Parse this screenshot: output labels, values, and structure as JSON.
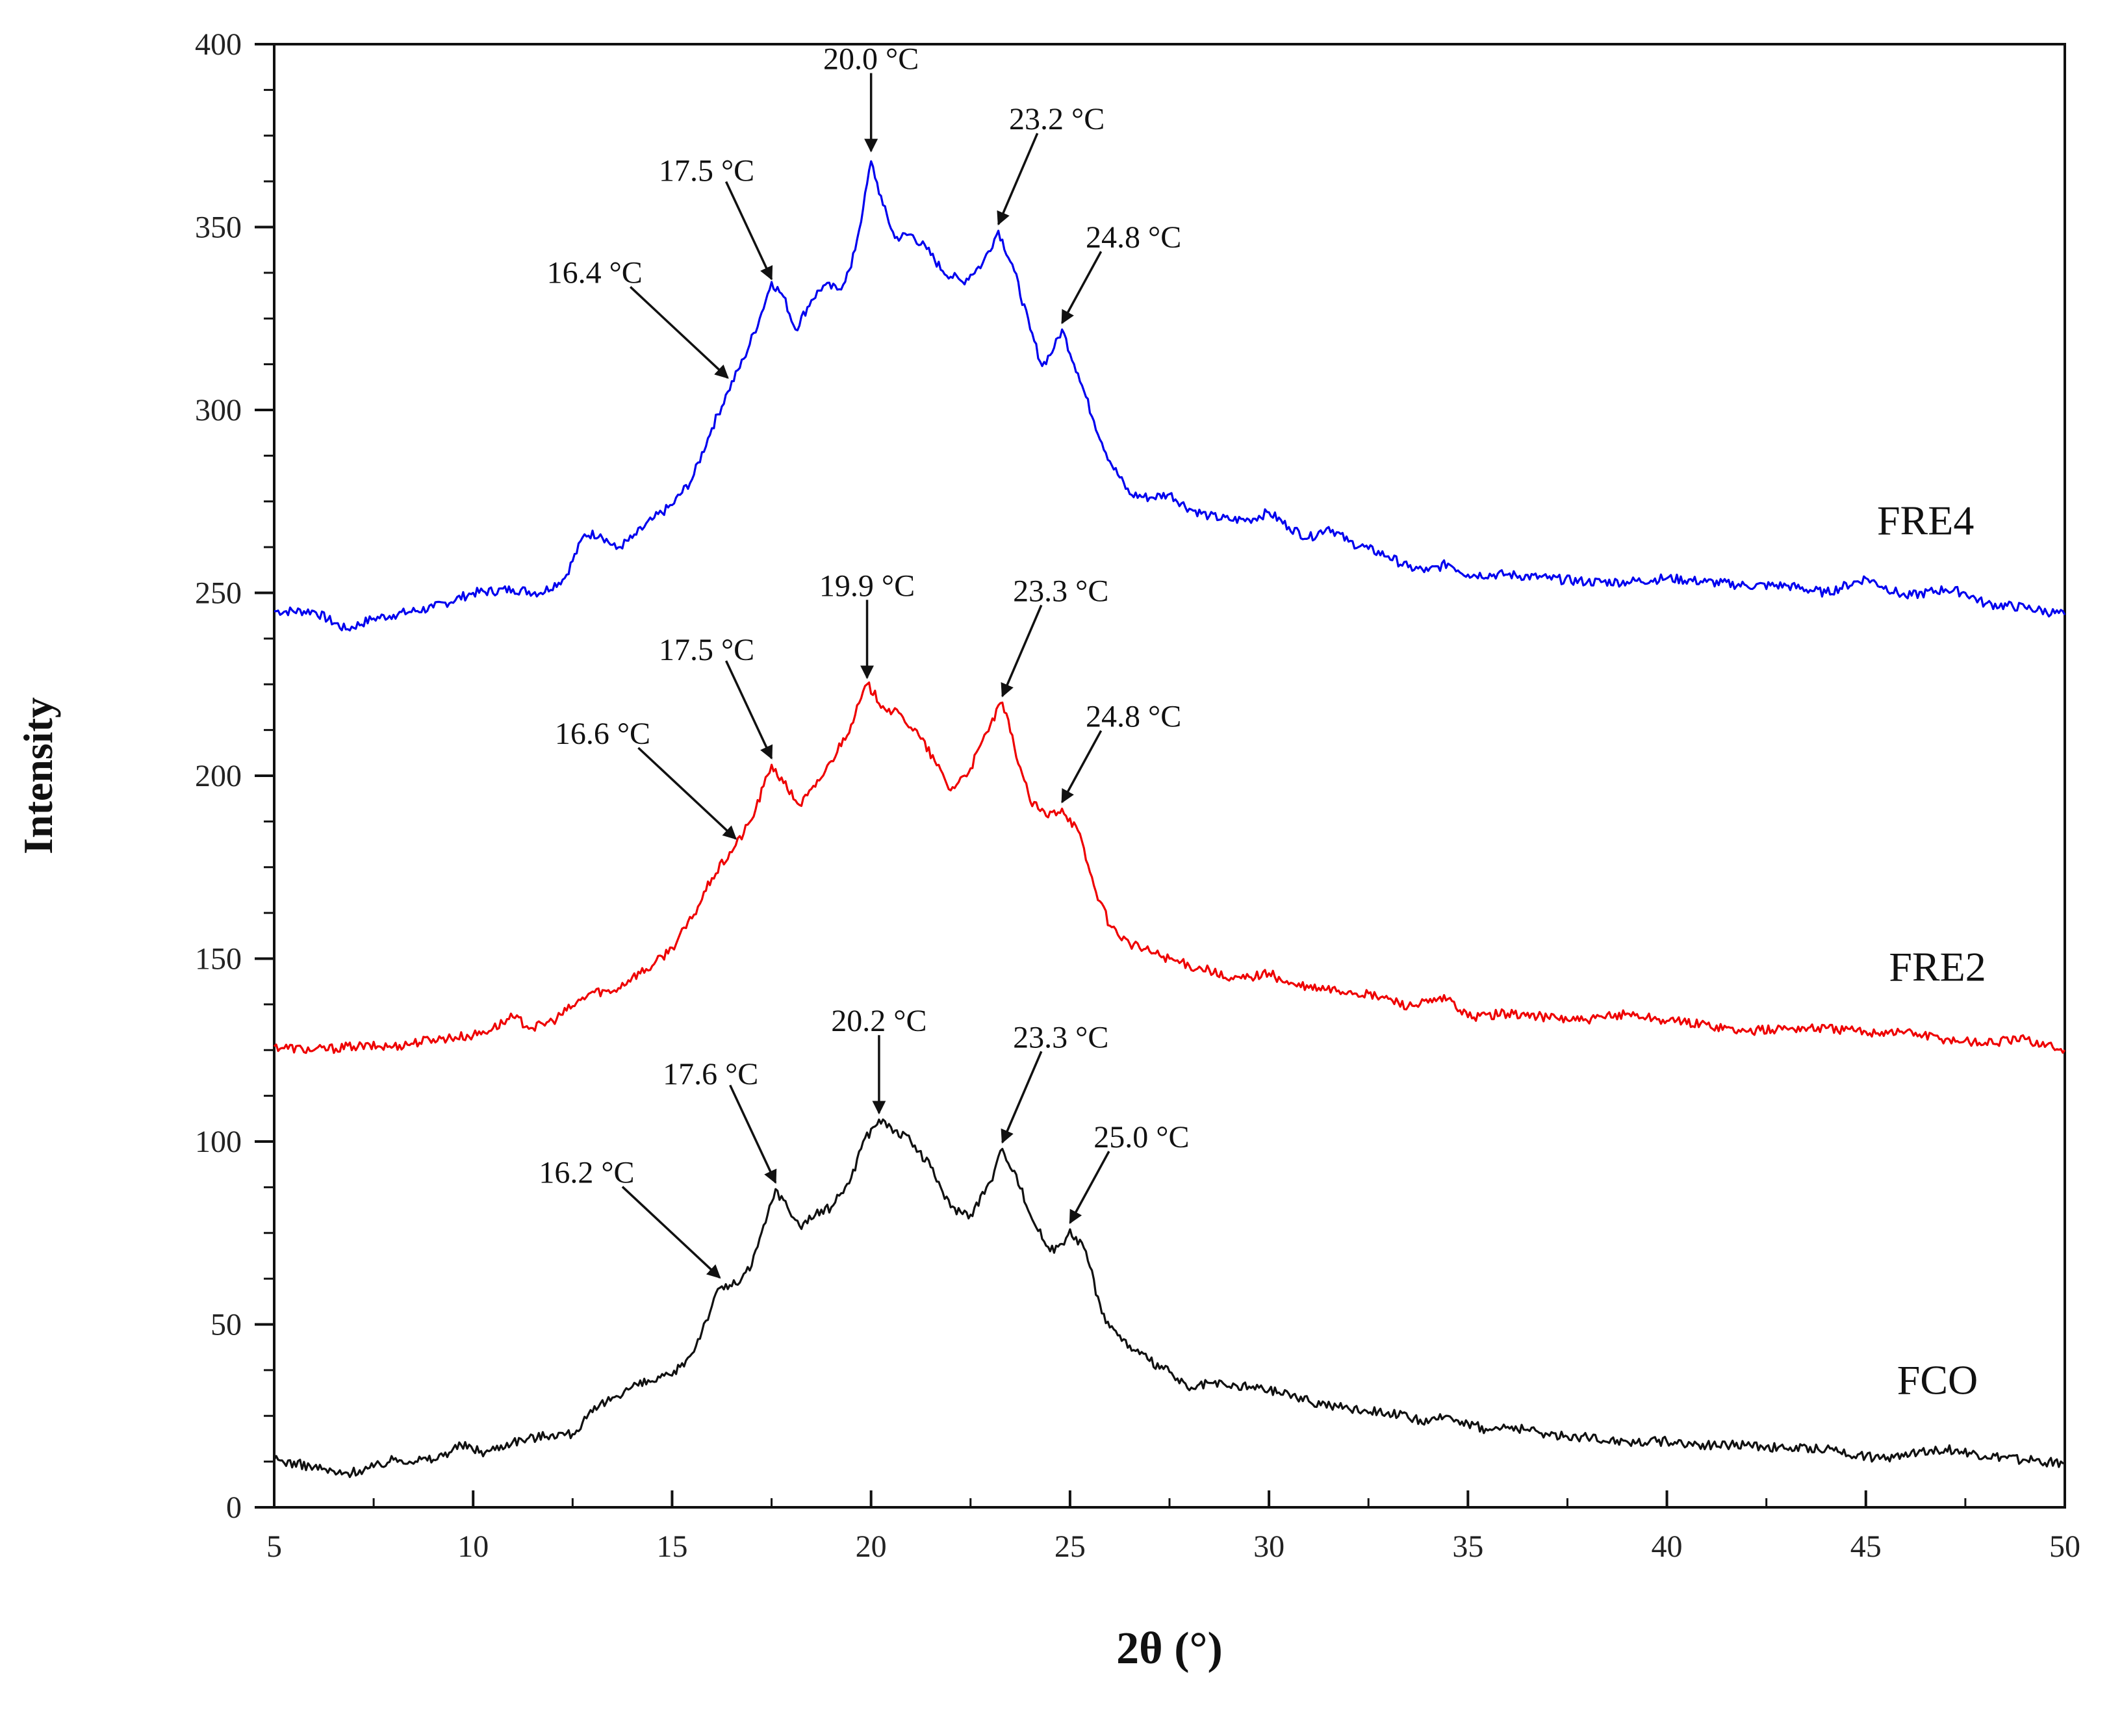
{
  "chart_data": {
    "type": "line",
    "title": "",
    "xlabel": "2θ (°)",
    "ylabel": "Intensity",
    "xlim": [
      5,
      50
    ],
    "ylim": [
      0,
      400
    ],
    "x_ticks": [
      5,
      10,
      15,
      20,
      25,
      30,
      35,
      40,
      45,
      50
    ],
    "y_ticks": [
      0,
      50,
      100,
      150,
      200,
      250,
      300,
      350,
      400
    ],
    "grid": false,
    "legend": "none",
    "series": [
      {
        "name": "FRE4",
        "color": "#0000ee",
        "points": [
          [
            5,
            245
          ],
          [
            6,
            245
          ],
          [
            6.8,
            240
          ],
          [
            7.5,
            243
          ],
          [
            8,
            244
          ],
          [
            9,
            246
          ],
          [
            10,
            250
          ],
          [
            11,
            251
          ],
          [
            11.7,
            250
          ],
          [
            12.3,
            254
          ],
          [
            12.8,
            266
          ],
          [
            13.2,
            266
          ],
          [
            13.6,
            262
          ],
          [
            14,
            265
          ],
          [
            14.5,
            270
          ],
          [
            15,
            274
          ],
          [
            15.5,
            281
          ],
          [
            16,
            295
          ],
          [
            16.4,
            305
          ],
          [
            16.8,
            314
          ],
          [
            17.2,
            325
          ],
          [
            17.5,
            335
          ],
          [
            17.8,
            331
          ],
          [
            18.1,
            322
          ],
          [
            18.5,
            330
          ],
          [
            18.8,
            334
          ],
          [
            19.2,
            333
          ],
          [
            19.5,
            339
          ],
          [
            19.8,
            355
          ],
          [
            20.0,
            368
          ],
          [
            20.3,
            356
          ],
          [
            20.6,
            347
          ],
          [
            21,
            348
          ],
          [
            21.4,
            344
          ],
          [
            21.8,
            338
          ],
          [
            22.3,
            335
          ],
          [
            22.8,
            340
          ],
          [
            23.2,
            349
          ],
          [
            23.6,
            338
          ],
          [
            24,
            322
          ],
          [
            24.3,
            312
          ],
          [
            24.6,
            317
          ],
          [
            24.8,
            322
          ],
          [
            25.2,
            310
          ],
          [
            25.6,
            297
          ],
          [
            26,
            286
          ],
          [
            26.5,
            277
          ],
          [
            27,
            276
          ],
          [
            27.5,
            277
          ],
          [
            28,
            273
          ],
          [
            28.5,
            271
          ],
          [
            29,
            270
          ],
          [
            29.5,
            270
          ],
          [
            30,
            272
          ],
          [
            30.5,
            268
          ],
          [
            31,
            265
          ],
          [
            31.5,
            268
          ],
          [
            32,
            264
          ],
          [
            32.5,
            262
          ],
          [
            33,
            260
          ],
          [
            33.5,
            257
          ],
          [
            34,
            256
          ],
          [
            34.5,
            258
          ],
          [
            35,
            255
          ],
          [
            36,
            255
          ],
          [
            37,
            254
          ],
          [
            38,
            253
          ],
          [
            39,
            253
          ],
          [
            40,
            254
          ],
          [
            41,
            253
          ],
          [
            42,
            252
          ],
          [
            43,
            252
          ],
          [
            44,
            250
          ],
          [
            45,
            254
          ],
          [
            46,
            249
          ],
          [
            47,
            251
          ],
          [
            47.5,
            250
          ],
          [
            48,
            247
          ],
          [
            49,
            246
          ],
          [
            50,
            244
          ]
        ]
      },
      {
        "name": "FRE2",
        "color": "#ee0000",
        "points": [
          [
            5,
            126
          ],
          [
            6,
            125
          ],
          [
            7,
            126
          ],
          [
            8,
            126
          ],
          [
            9,
            128
          ],
          [
            10,
            129
          ],
          [
            10.5,
            131
          ],
          [
            11,
            134
          ],
          [
            11.5,
            131
          ],
          [
            12,
            133
          ],
          [
            12.5,
            137
          ],
          [
            13,
            141
          ],
          [
            13.5,
            141
          ],
          [
            14,
            145
          ],
          [
            14.5,
            148
          ],
          [
            15,
            153
          ],
          [
            15.5,
            161
          ],
          [
            16,
            172
          ],
          [
            16.6,
            181
          ],
          [
            17,
            188
          ],
          [
            17.5,
            203
          ],
          [
            17.8,
            198
          ],
          [
            18.2,
            192
          ],
          [
            18.6,
            197
          ],
          [
            19,
            204
          ],
          [
            19.5,
            214
          ],
          [
            19.9,
            225
          ],
          [
            20.3,
            219
          ],
          [
            20.8,
            216
          ],
          [
            21.2,
            211
          ],
          [
            21.6,
            204
          ],
          [
            22,
            196
          ],
          [
            22.5,
            202
          ],
          [
            23,
            214
          ],
          [
            23.3,
            220
          ],
          [
            23.6,
            208
          ],
          [
            24,
            193
          ],
          [
            24.4,
            189
          ],
          [
            24.8,
            191
          ],
          [
            25.2,
            185
          ],
          [
            25.6,
            170
          ],
          [
            26,
            159
          ],
          [
            26.5,
            154
          ],
          [
            27,
            152
          ],
          [
            27.5,
            150
          ],
          [
            28,
            148
          ],
          [
            28.5,
            147
          ],
          [
            29,
            144
          ],
          [
            29.5,
            145
          ],
          [
            30,
            146
          ],
          [
            30.5,
            143
          ],
          [
            31,
            142
          ],
          [
            32,
            141
          ],
          [
            33,
            139
          ],
          [
            33.5,
            137
          ],
          [
            34,
            138
          ],
          [
            34.5,
            139
          ],
          [
            35,
            134
          ],
          [
            36,
            135
          ],
          [
            37,
            134
          ],
          [
            38,
            133
          ],
          [
            39,
            135
          ],
          [
            40,
            133
          ],
          [
            41,
            132
          ],
          [
            42,
            130
          ],
          [
            43,
            131
          ],
          [
            44,
            131
          ],
          [
            45,
            130
          ],
          [
            46,
            130
          ],
          [
            47,
            128
          ],
          [
            48,
            127
          ],
          [
            49,
            128
          ],
          [
            50,
            125
          ]
        ]
      },
      {
        "name": "FCO",
        "color": "#111111",
        "points": [
          [
            5,
            13
          ],
          [
            6,
            11
          ],
          [
            6.7,
            9
          ],
          [
            7.5,
            11
          ],
          [
            8,
            13
          ],
          [
            9,
            13
          ],
          [
            9.7,
            17
          ],
          [
            10.3,
            15
          ],
          [
            11,
            18
          ],
          [
            12,
            20
          ],
          [
            12.5,
            20
          ],
          [
            13,
            26
          ],
          [
            13.5,
            30
          ],
          [
            14,
            33
          ],
          [
            15,
            36
          ],
          [
            15.5,
            42
          ],
          [
            16,
            55
          ],
          [
            16.2,
            60
          ],
          [
            16.6,
            61
          ],
          [
            17,
            66
          ],
          [
            17.4,
            80
          ],
          [
            17.6,
            87
          ],
          [
            17.9,
            82
          ],
          [
            18.2,
            77
          ],
          [
            18.6,
            80
          ],
          [
            19,
            82
          ],
          [
            19.5,
            90
          ],
          [
            19.8,
            100
          ],
          [
            20.2,
            106
          ],
          [
            20.6,
            103
          ],
          [
            21,
            100
          ],
          [
            21.5,
            93
          ],
          [
            22,
            82
          ],
          [
            22.5,
            80
          ],
          [
            23,
            89
          ],
          [
            23.3,
            98
          ],
          [
            23.6,
            92
          ],
          [
            24,
            80
          ],
          [
            24.5,
            70
          ],
          [
            24.8,
            72
          ],
          [
            25.0,
            76
          ],
          [
            25.4,
            70
          ],
          [
            25.8,
            53
          ],
          [
            26.2,
            47
          ],
          [
            26.6,
            43
          ],
          [
            27,
            40
          ],
          [
            27.5,
            37
          ],
          [
            28,
            32
          ],
          [
            28.5,
            34
          ],
          [
            29,
            33
          ],
          [
            29.5,
            33
          ],
          [
            30,
            32
          ],
          [
            30.5,
            31
          ],
          [
            31,
            29
          ],
          [
            32,
            27
          ],
          [
            33,
            26
          ],
          [
            34,
            23
          ],
          [
            34.5,
            25
          ],
          [
            35,
            23
          ],
          [
            35.5,
            21
          ],
          [
            36,
            22
          ],
          [
            37,
            20
          ],
          [
            38,
            19
          ],
          [
            39,
            18
          ],
          [
            40,
            18
          ],
          [
            41,
            17
          ],
          [
            42,
            17
          ],
          [
            43,
            16
          ],
          [
            44,
            16
          ],
          [
            45,
            14
          ],
          [
            45.5,
            13
          ],
          [
            46,
            15
          ],
          [
            47,
            16
          ],
          [
            48,
            14
          ],
          [
            49,
            13
          ],
          [
            50,
            12
          ]
        ]
      }
    ],
    "series_labels": [
      {
        "text": "FRE4",
        "x": 46.5,
        "y": 266
      },
      {
        "text": "FRE2",
        "x": 46.8,
        "y": 144
      },
      {
        "text": "FCO",
        "x": 46.8,
        "y": 31
      }
    ],
    "annotations": [
      {
        "text": "16.4 °C",
        "x": 16.4,
        "y": 307,
        "group": "FRE4"
      },
      {
        "text": "17.5 °C",
        "x": 17.5,
        "y": 334,
        "group": "FRE4"
      },
      {
        "text": "20.0 °C",
        "x": 20.0,
        "y": 369,
        "group": "FRE4"
      },
      {
        "text": "23.2 °C",
        "x": 23.2,
        "y": 349,
        "group": "FRE4"
      },
      {
        "text": "24.8 °C",
        "x": 24.8,
        "y": 322,
        "group": "FRE4"
      },
      {
        "text": "16.6 °C",
        "x": 16.6,
        "y": 181,
        "group": "FRE2"
      },
      {
        "text": "17.5 °C",
        "x": 17.5,
        "y": 203,
        "group": "FRE2"
      },
      {
        "text": "19.9 °C",
        "x": 19.9,
        "y": 225,
        "group": "FRE2"
      },
      {
        "text": "23.3 °C",
        "x": 23.3,
        "y": 220,
        "group": "FRE2"
      },
      {
        "text": "24.8 °C",
        "x": 24.8,
        "y": 191,
        "group": "FRE2"
      },
      {
        "text": "16.2 °C",
        "x": 16.2,
        "y": 61,
        "group": "FCO"
      },
      {
        "text": "17.6 °C",
        "x": 17.6,
        "y": 87,
        "group": "FCO"
      },
      {
        "text": "20.2 °C",
        "x": 20.2,
        "y": 106,
        "group": "FCO"
      },
      {
        "text": "23.3 °C",
        "x": 23.3,
        "y": 98,
        "group": "FCO"
      },
      {
        "text": "25.0 °C",
        "x": 25.0,
        "y": 76,
        "group": "FCO"
      }
    ]
  }
}
